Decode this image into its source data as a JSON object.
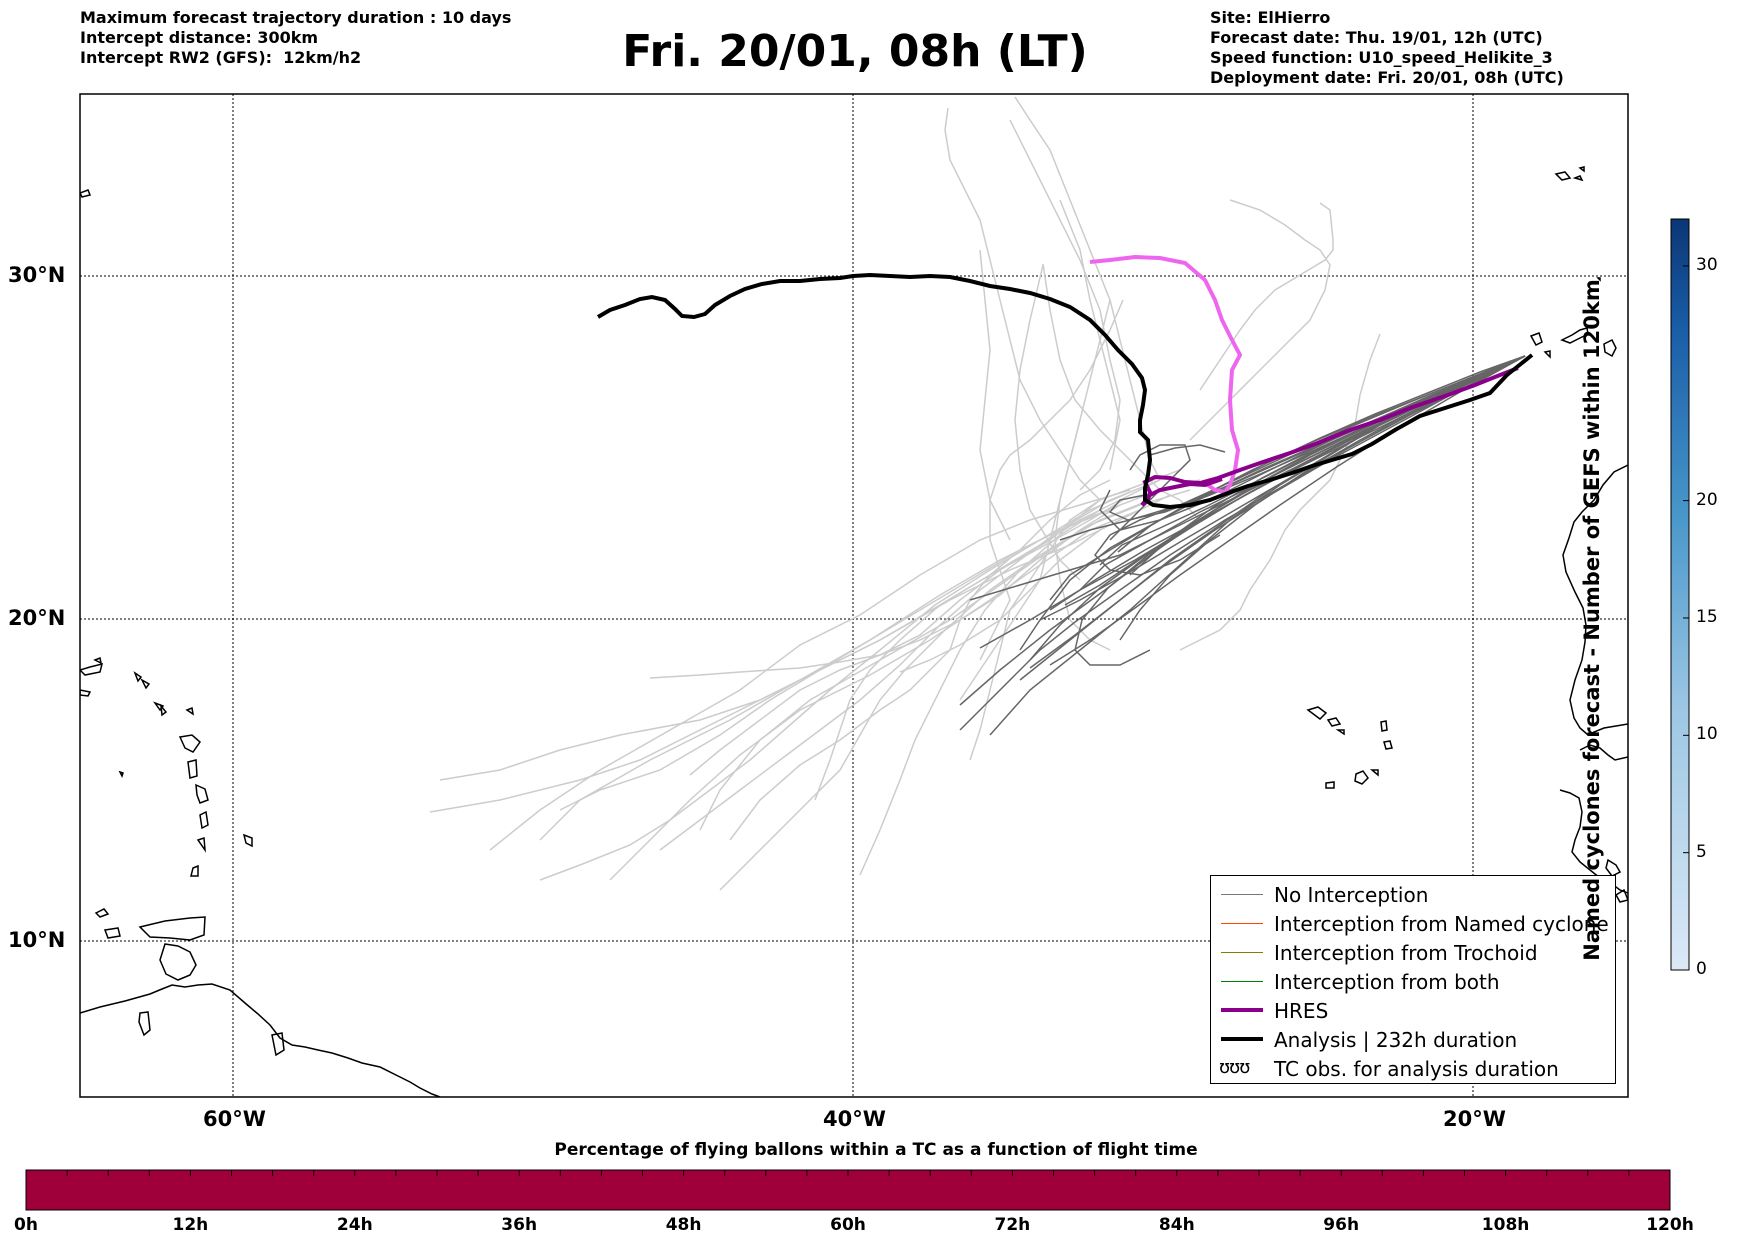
{
  "header": {
    "left_lines": [
      "Maximum forecast trajectory duration : 10 days",
      "Intercept distance: 300km",
      "Intercept RW2 (GFS):  12km/h2"
    ],
    "title": "Fri. 20/01, 08h (LT)",
    "right_lines": [
      "Site: ElHierro",
      "Forecast date: Thu. 19/01, 12h (UTC)",
      "Speed function: U10_speed_Helikite_3",
      "Deployment date: Fri. 20/01, 08h (UTC)"
    ]
  },
  "map": {
    "lon_labels": [
      "60°W",
      "40°W",
      "20°W"
    ],
    "lat_labels": [
      "30°N",
      "20°N",
      "10°N"
    ],
    "colors": {
      "no_interception_early": "#cccccc",
      "no_interception": "#666666",
      "hres": "#8b008b",
      "hres_extension": "#ee66ee",
      "analysis": "#000000"
    }
  },
  "legend": {
    "items": [
      {
        "label": "No Interception",
        "color": "#777777",
        "style": "thin"
      },
      {
        "label": "Interception from Named cyclone",
        "color": "#ff4500",
        "style": "thin"
      },
      {
        "label": "Interception from Trochoid",
        "color": "#808000",
        "style": "thin"
      },
      {
        "label": "Interception from both",
        "color": "#008000",
        "style": "thin"
      },
      {
        "label": "HRES",
        "color": "#8b008b",
        "style": "thick"
      },
      {
        "label": "Analysis | 232h duration",
        "color": "#000000",
        "style": "thick"
      },
      {
        "label": "TC obs. for analysis duration",
        "color": "#000000",
        "style": "symbol",
        "symbol": "ʊʊʊ"
      }
    ]
  },
  "colorbar": {
    "title": "Named cyclones forecast - Number of GEFS within 120km",
    "ticks": [
      "0",
      "5",
      "10",
      "15",
      "20",
      "30"
    ],
    "tick_values": [
      0,
      5,
      10,
      15,
      20,
      30
    ]
  },
  "time_bar": {
    "title": "Percentage of flying ballons within a TC as a function of flight time",
    "ticks": [
      "0h",
      "12h",
      "24h",
      "36h",
      "48h",
      "60h",
      "72h",
      "84h",
      "96h",
      "108h",
      "120h"
    ],
    "fill_color": "#a0003a"
  }
}
